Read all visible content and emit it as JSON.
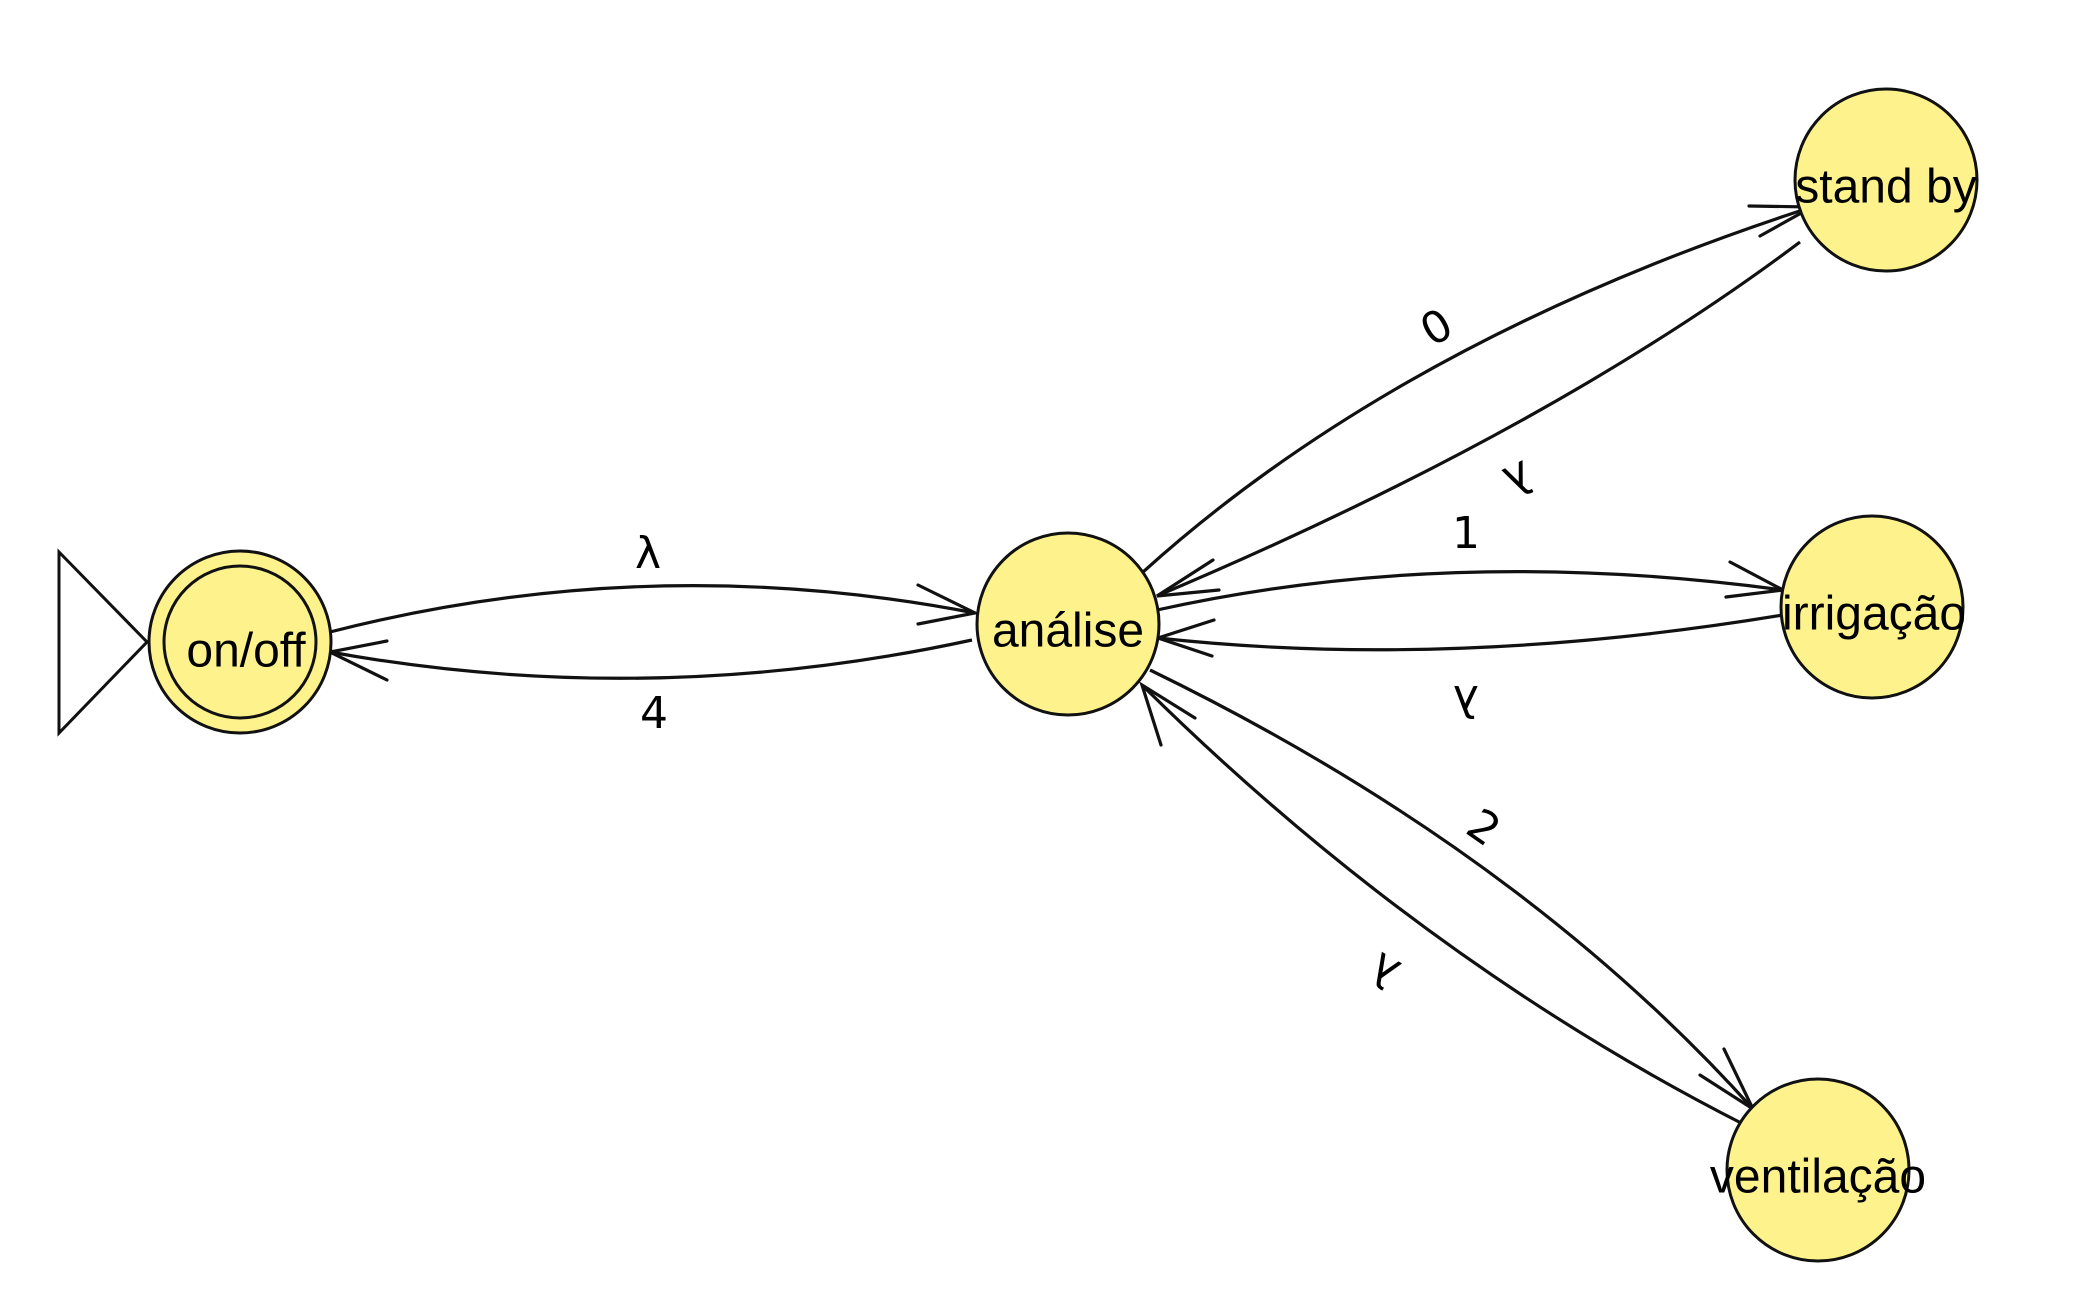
{
  "diagram": {
    "colors": {
      "state_fill": "#fdf28c",
      "stroke": "#111111"
    },
    "states": {
      "on_off": {
        "label": "on/off",
        "initial": true,
        "accepting": true
      },
      "analise": {
        "label": "análise"
      },
      "stand_by": {
        "label": "stand by"
      },
      "irrigacao": {
        "label": "irrigação"
      },
      "ventilacao": {
        "label": "ventilação"
      }
    },
    "transitions": {
      "onoff_to_analise": {
        "from": "on/off",
        "to": "análise",
        "label": "λ"
      },
      "analise_to_onoff": {
        "from": "análise",
        "to": "on/off",
        "label": "4"
      },
      "analise_to_standby": {
        "from": "análise",
        "to": "stand by",
        "label": "0"
      },
      "standby_to_analise": {
        "from": "stand by",
        "to": "análise",
        "label": "λ"
      },
      "analise_to_irrigacao": {
        "from": "análise",
        "to": "irrigação",
        "label": "1"
      },
      "irrigacao_to_analise": {
        "from": "irrigação",
        "to": "análise",
        "label": "λ"
      },
      "analise_to_ventilacao": {
        "from": "análise",
        "to": "ventilação",
        "label": "2"
      },
      "ventilacao_to_analise": {
        "from": "ventilação",
        "to": "análise",
        "label": "λ"
      }
    }
  }
}
